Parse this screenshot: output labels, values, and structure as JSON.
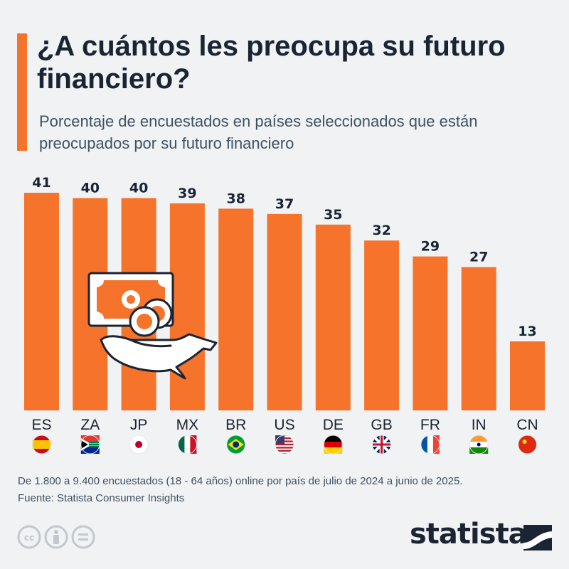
{
  "header": {
    "title": "¿A cuántos les preocupa su futuro financiero?",
    "subtitle": "Porcentaje de encuestados en países seleccionados que están preocupados por su futuro financiero"
  },
  "chart_data": {
    "type": "bar",
    "title": "¿A cuántos les preocupa su futuro financiero?",
    "subtitle": "Porcentaje de encuestados en países seleccionados que están preocupados por su futuro financiero",
    "categories": [
      "ES",
      "ZA",
      "JP",
      "MX",
      "BR",
      "US",
      "DE",
      "GB",
      "FR",
      "IN",
      "CN"
    ],
    "values": [
      41,
      40,
      40,
      39,
      38,
      37,
      35,
      32,
      29,
      27,
      13
    ],
    "flags": [
      "spain-flag-icon",
      "south-africa-flag-icon",
      "japan-flag-icon",
      "mexico-flag-icon",
      "brazil-flag-icon",
      "usa-flag-icon",
      "germany-flag-icon",
      "uk-flag-icon",
      "france-flag-icon",
      "india-flag-icon",
      "china-flag-icon"
    ],
    "ylim": [
      0,
      41
    ],
    "xlabel": "",
    "ylabel": "",
    "grid": false,
    "bar_color": "#f5732a"
  },
  "footer": {
    "note": "De 1.800 a 9.400 encuestados (18 - 64 años) online por país de julio de 2024 a junio de 2025.",
    "source": "Fuente: Statista Consumer Insights",
    "brand": "statista"
  },
  "colors": {
    "accent": "#f5732a",
    "text": "#1b2433",
    "muted": "#3f5162",
    "background": "#f0f2f4"
  }
}
